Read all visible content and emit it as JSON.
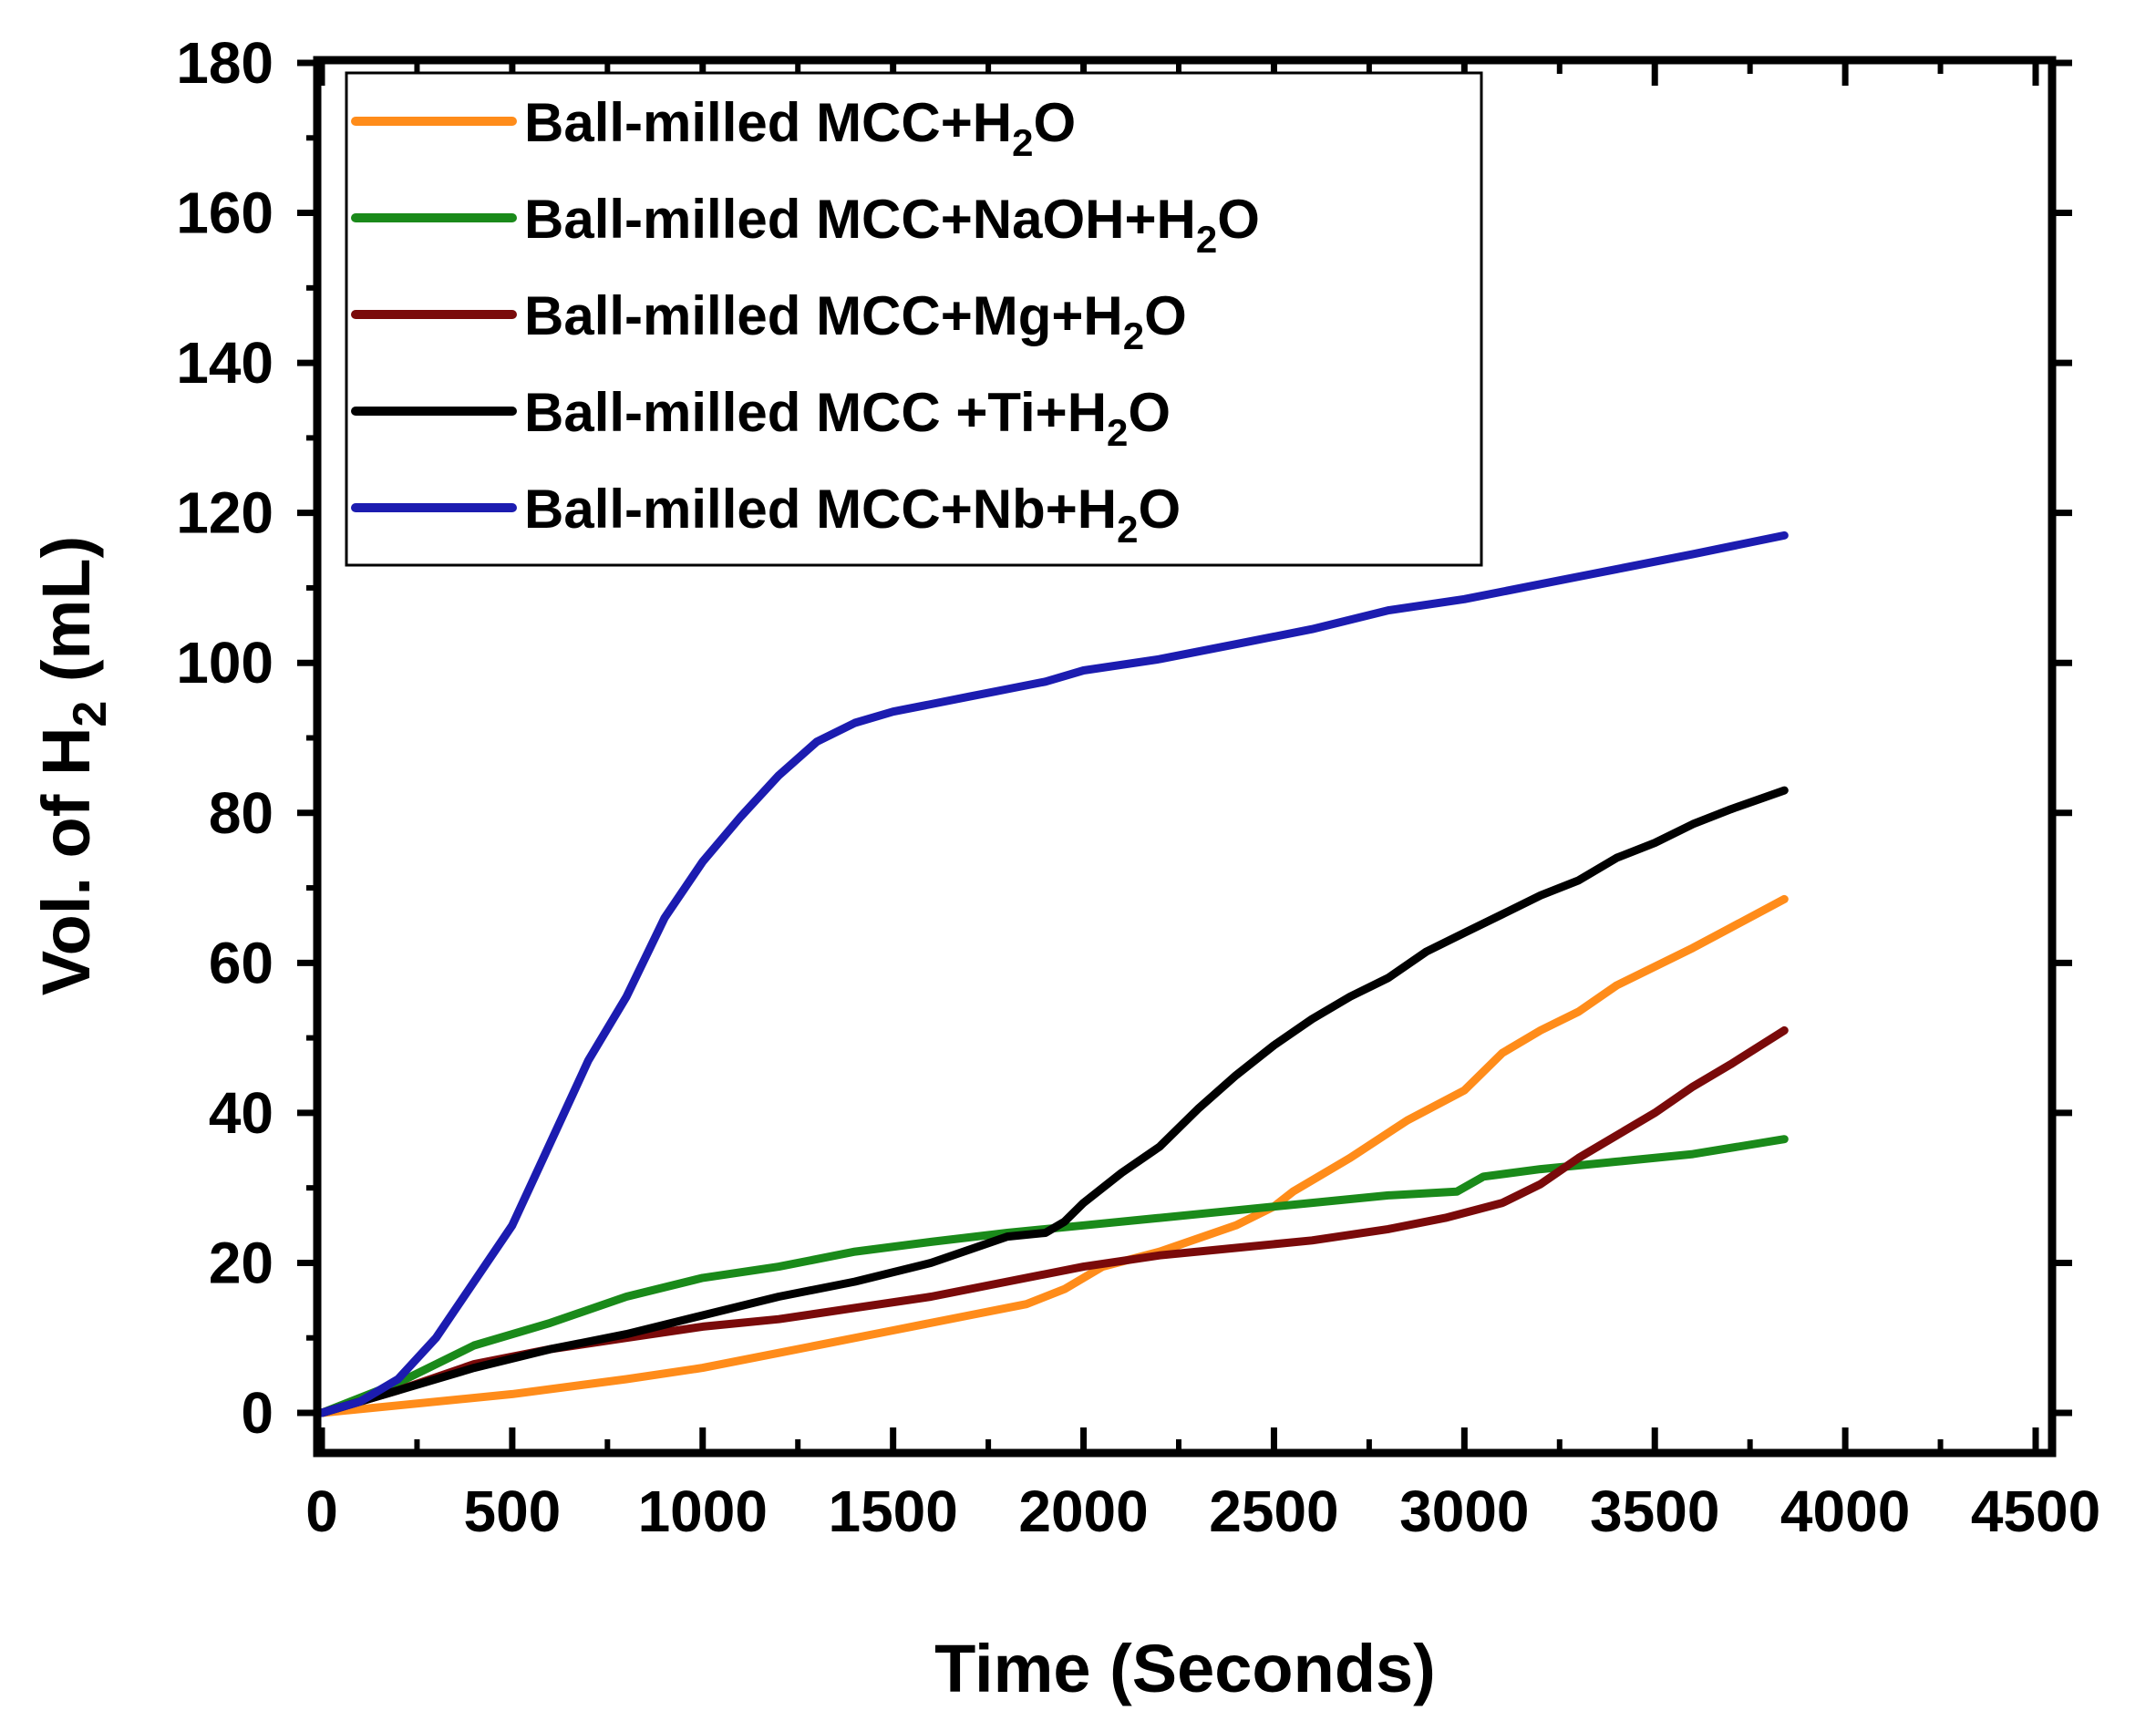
{
  "chart_data": {
    "type": "line",
    "title": "",
    "xlabel": "Time (Seconds)",
    "ylabel_parts": [
      "Vol. of H",
      "2",
      " (mL)"
    ],
    "xlim": [
      0,
      4500
    ],
    "ylim": [
      0,
      180
    ],
    "xticks": [
      0,
      500,
      1000,
      1500,
      2000,
      2500,
      3000,
      3500,
      4000,
      4500
    ],
    "yticks": [
      0,
      20,
      40,
      60,
      80,
      100,
      120,
      140,
      160,
      180
    ],
    "grid": false,
    "legend_position": "top-left",
    "series": [
      {
        "name": "Ball-milled MCC+H2O",
        "label_parts": [
          "Ball-milled MCC+H",
          "2",
          "O"
        ],
        "color": "#ff8c1a",
        "points": [
          [
            0,
            0
          ],
          [
            200,
            1
          ],
          [
            500,
            2.5
          ],
          [
            800,
            4.5
          ],
          [
            1000,
            6
          ],
          [
            1200,
            8
          ],
          [
            1500,
            11
          ],
          [
            1700,
            13
          ],
          [
            1850,
            14.5
          ],
          [
            1950,
            16.5
          ],
          [
            2050,
            19.5
          ],
          [
            2200,
            21.5
          ],
          [
            2400,
            25
          ],
          [
            2500,
            27.5
          ],
          [
            2550,
            29.5
          ],
          [
            2700,
            34
          ],
          [
            2850,
            39
          ],
          [
            3000,
            43
          ],
          [
            3100,
            48
          ],
          [
            3200,
            51
          ],
          [
            3300,
            53.5
          ],
          [
            3400,
            57
          ],
          [
            3600,
            62
          ],
          [
            3840,
            68.5
          ]
        ]
      },
      {
        "name": "Ball-milled MCC+NaOH+H2O",
        "label_parts": [
          "Ball-milled MCC+NaOH+H",
          "2",
          "O"
        ],
        "color": "#1a8a1a",
        "points": [
          [
            0,
            0
          ],
          [
            200,
            4
          ],
          [
            400,
            9
          ],
          [
            600,
            12
          ],
          [
            800,
            15.5
          ],
          [
            1000,
            18
          ],
          [
            1200,
            19.5
          ],
          [
            1400,
            21.5
          ],
          [
            1600,
            22.8
          ],
          [
            1800,
            24
          ],
          [
            2000,
            25
          ],
          [
            2200,
            26
          ],
          [
            2400,
            27
          ],
          [
            2600,
            28
          ],
          [
            2800,
            29
          ],
          [
            2980,
            29.5
          ],
          [
            3050,
            31.5
          ],
          [
            3200,
            32.5
          ],
          [
            3400,
            33.5
          ],
          [
            3600,
            34.5
          ],
          [
            3840,
            36.5
          ]
        ]
      },
      {
        "name": "Ball-milled MCC+Mg+H2O",
        "label_parts": [
          "Ball-milled MCC+Mg+H",
          "2",
          "O"
        ],
        "color": "#7a0a0a",
        "points": [
          [
            0,
            0
          ],
          [
            200,
            3
          ],
          [
            400,
            6.5
          ],
          [
            600,
            8.5
          ],
          [
            800,
            10
          ],
          [
            1000,
            11.5
          ],
          [
            1200,
            12.5
          ],
          [
            1400,
            14
          ],
          [
            1600,
            15.5
          ],
          [
            1800,
            17.5
          ],
          [
            2000,
            19.5
          ],
          [
            2200,
            21
          ],
          [
            2400,
            22
          ],
          [
            2600,
            23
          ],
          [
            2800,
            24.5
          ],
          [
            2950,
            26
          ],
          [
            3100,
            28
          ],
          [
            3200,
            30.5
          ],
          [
            3300,
            34
          ],
          [
            3400,
            37
          ],
          [
            3500,
            40
          ],
          [
            3600,
            43.5
          ],
          [
            3700,
            46.5
          ],
          [
            3840,
            51
          ]
        ]
      },
      {
        "name": "Ball-milled MCC +Ti+H2O",
        "label_parts": [
          "Ball-milled MCC +Ti+H",
          "2",
          "O"
        ],
        "color": "#000000",
        "points": [
          [
            0,
            0
          ],
          [
            200,
            3
          ],
          [
            400,
            6
          ],
          [
            600,
            8.5
          ],
          [
            800,
            10.5
          ],
          [
            1000,
            13
          ],
          [
            1200,
            15.5
          ],
          [
            1400,
            17.5
          ],
          [
            1600,
            20
          ],
          [
            1800,
            23.5
          ],
          [
            1900,
            24
          ],
          [
            1950,
            25.5
          ],
          [
            2000,
            28
          ],
          [
            2100,
            32
          ],
          [
            2200,
            35.5
          ],
          [
            2300,
            40.5
          ],
          [
            2400,
            45
          ],
          [
            2500,
            49
          ],
          [
            2600,
            52.5
          ],
          [
            2700,
            55.5
          ],
          [
            2800,
            58
          ],
          [
            2900,
            61.5
          ],
          [
            3000,
            64
          ],
          [
            3100,
            66.5
          ],
          [
            3200,
            69
          ],
          [
            3300,
            71
          ],
          [
            3400,
            74
          ],
          [
            3500,
            76
          ],
          [
            3600,
            78.5
          ],
          [
            3700,
            80.5
          ],
          [
            3840,
            83
          ]
        ]
      },
      {
        "name": "Ball-milled MCC+Nb+H2O",
        "label_parts": [
          "Ball-milled MCC+Nb+H",
          "2",
          "O"
        ],
        "color": "#1c1cb0",
        "points": [
          [
            0,
            0
          ],
          [
            100,
            1.5
          ],
          [
            200,
            4.5
          ],
          [
            300,
            10
          ],
          [
            400,
            17.5
          ],
          [
            500,
            25
          ],
          [
            600,
            36
          ],
          [
            700,
            47
          ],
          [
            800,
            55.5
          ],
          [
            900,
            66
          ],
          [
            1000,
            73.5
          ],
          [
            1100,
            79.5
          ],
          [
            1200,
            85
          ],
          [
            1300,
            89.5
          ],
          [
            1400,
            92
          ],
          [
            1500,
            93.5
          ],
          [
            1600,
            94.5
          ],
          [
            1700,
            95.5
          ],
          [
            1800,
            96.5
          ],
          [
            1900,
            97.5
          ],
          [
            2000,
            99
          ],
          [
            2200,
            100.5
          ],
          [
            2400,
            102.5
          ],
          [
            2600,
            104.5
          ],
          [
            2800,
            107
          ],
          [
            3000,
            108.5
          ],
          [
            3200,
            110.5
          ],
          [
            3400,
            112.5
          ],
          [
            3600,
            114.5
          ],
          [
            3840,
            117
          ]
        ]
      }
    ]
  }
}
